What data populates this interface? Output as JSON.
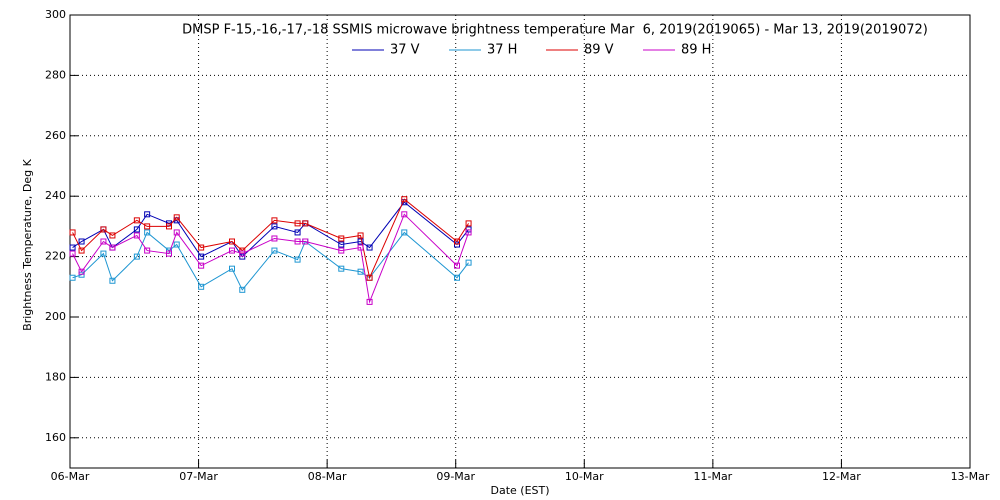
{
  "chart_data": {
    "type": "line",
    "title": "DMSP F-15,-16,-17,-18 SSMIS microwave brightness temperature Mar  6, 2019(2019065) - Mar 13, 2019(2019072)",
    "x_label": "Date (EST)",
    "y_label": "Brightness Temperature, Deg K",
    "x": [
      0.02,
      0.09,
      0.26,
      0.33,
      0.52,
      0.6,
      0.77,
      0.83,
      1.02,
      1.26,
      1.34,
      1.59,
      1.77,
      1.83,
      2.11,
      2.26,
      2.33,
      2.6,
      3.01,
      3.1
    ],
    "series": [
      {
        "name": "37 V",
        "color": "#0000b4",
        "values": [
          223,
          225,
          229,
          223,
          229,
          234,
          231,
          232,
          220,
          225,
          220,
          230,
          228,
          231,
          224,
          225,
          223,
          238,
          224,
          229
        ]
      },
      {
        "name": "37 H",
        "color": "#1e96d2",
        "values": [
          213,
          214,
          221,
          212,
          220,
          228,
          222,
          224,
          210,
          216,
          209,
          222,
          219,
          225,
          216,
          215,
          213,
          228,
          213,
          218
        ]
      },
      {
        "name": "89 V",
        "color": "#dc0000",
        "values": [
          228,
          222,
          229,
          227,
          232,
          230,
          230,
          233,
          223,
          225,
          222,
          232,
          231,
          231,
          226,
          227,
          213,
          239,
          225,
          231
        ]
      },
      {
        "name": "89 H",
        "color": "#c800c8",
        "values": [
          221,
          215,
          225,
          223,
          227,
          222,
          221,
          228,
          217,
          222,
          221,
          226,
          225,
          225,
          222,
          223,
          205,
          234,
          217,
          228
        ]
      }
    ],
    "xlim": [
      0,
      7
    ],
    "xticks": [
      {
        "value": 0,
        "label": "06-Mar"
      },
      {
        "value": 1,
        "label": "07-Mar"
      },
      {
        "value": 2,
        "label": "08-Mar"
      },
      {
        "value": 3,
        "label": "09-Mar"
      },
      {
        "value": 4,
        "label": "10-Mar"
      },
      {
        "value": 5,
        "label": "11-Mar"
      },
      {
        "value": 6,
        "label": "12-Mar"
      },
      {
        "value": 7,
        "label": "13-Mar"
      }
    ],
    "ylim": [
      150,
      300
    ],
    "yticks": [
      160,
      180,
      200,
      220,
      240,
      260,
      280,
      300
    ],
    "grid": true
  }
}
